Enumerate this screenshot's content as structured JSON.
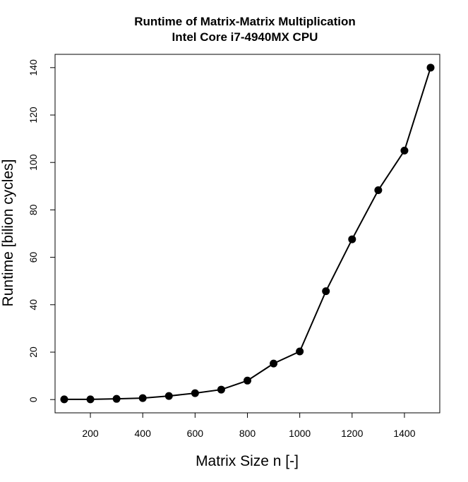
{
  "chart_data": {
    "type": "line",
    "title": "Runtime of Matrix-Matrix Multiplication",
    "subtitle": "Intel Core i7-4940MX CPU",
    "xlabel": "Matrix Size n [-]",
    "ylabel": "Runtime [bilion cycles]",
    "xlim": [
      65,
      1535
    ],
    "ylim": [
      -5.6,
      145.6
    ],
    "xticks": [
      200,
      400,
      600,
      800,
      1000,
      1200,
      1400
    ],
    "yticks": [
      0,
      20,
      40,
      60,
      80,
      100,
      120,
      140
    ],
    "grid": false,
    "series": [
      {
        "x": [
          100,
          200,
          300,
          400,
          500,
          600,
          700,
          800,
          900,
          1000,
          1100,
          1200,
          1300,
          1400,
          1500
        ],
        "y": [
          0.1,
          0.1,
          0.3,
          0.6,
          1.5,
          2.7,
          4.2,
          8.0,
          15.2,
          20.3,
          45.7,
          67.6,
          88.3,
          105.0,
          140.0
        ]
      }
    ],
    "colors": {
      "line": "#000000",
      "marker": "#000000",
      "frame": "#000000"
    }
  }
}
